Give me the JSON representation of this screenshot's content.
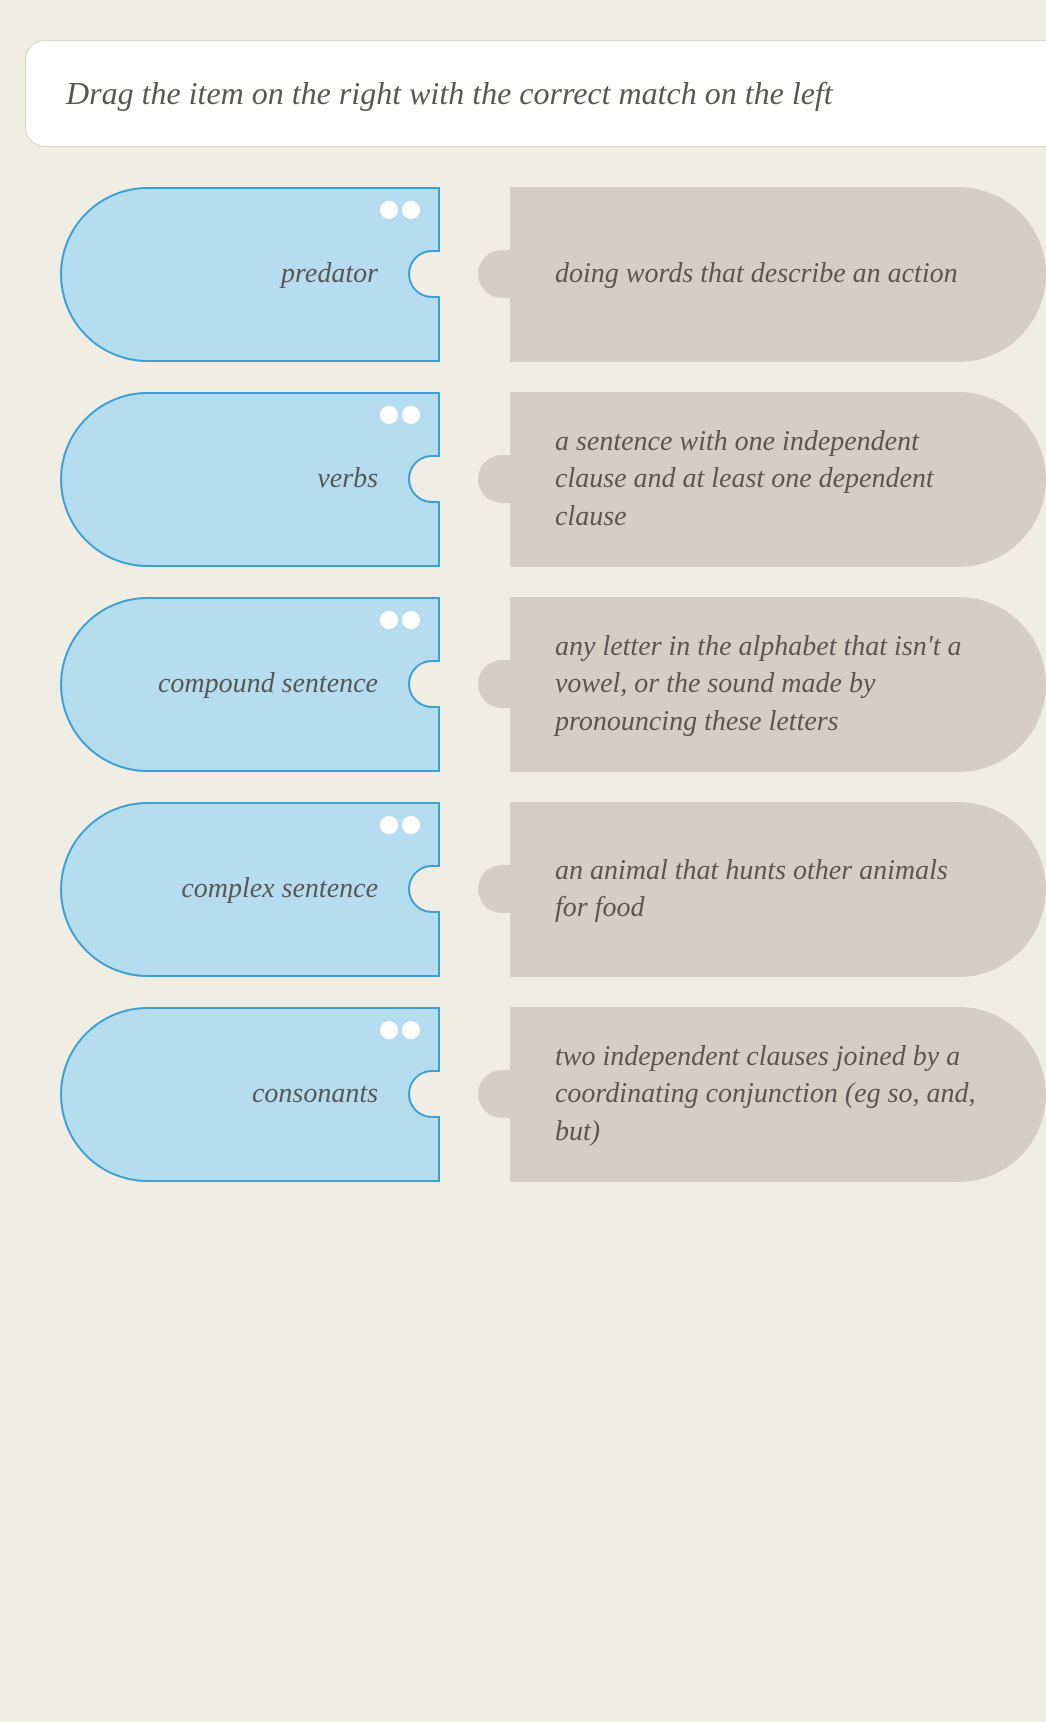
{
  "instruction": "Drag the item on the right with the correct match on the left",
  "colors": {
    "page_bg": "#f0ede4",
    "instruction_bg": "#ffffff",
    "instruction_border": "#d8d4ca",
    "left_piece_fill": "#b5dcef",
    "left_piece_border": "#3d9fd1",
    "right_piece_fill": "#d4cec4",
    "dot_fill": "#ffffff",
    "text_color": "#5a5753"
  },
  "typography": {
    "instruction_fontsize": 32,
    "label_fontsize": 28,
    "font_style": "italic",
    "font_family": "Georgia, serif"
  },
  "layout": {
    "left_piece_width": 380,
    "gap_width": 70,
    "row_min_height": 175,
    "left_border_radius": 90,
    "right_border_radius": 90
  },
  "pairs": [
    {
      "left": "predator",
      "right": "doing words that describe an action"
    },
    {
      "left": "verbs",
      "right": "a sentence with one independent clause and at least one dependent clause"
    },
    {
      "left": "compound sentence",
      "right": "any letter in the alphabet that isn't a vowel, or the sound made by pronouncing these letters"
    },
    {
      "left": "complex sentence",
      "right": "an animal that hunts other animals for food"
    },
    {
      "left": "consonants",
      "right": "two independent clauses joined by a coordinating conjunction (eg so, and, but)"
    }
  ]
}
